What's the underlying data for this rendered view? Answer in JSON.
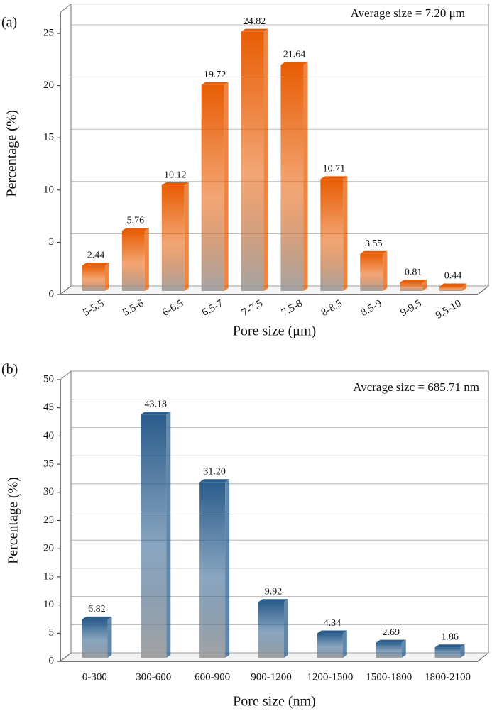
{
  "chart_data": [
    {
      "type": "bar",
      "panel_label": "(a)",
      "annotation": "Average size = 7.20 μm",
      "x_label": "Pore size (μm)",
      "y_label": "Percentage (%)",
      "categories": [
        "5-5.5",
        "5.5-6",
        "6-6.5",
        "6.5-7",
        "7-7.5",
        "7.5-8",
        "8-8.5",
        "8.5-9",
        "9-9.5",
        "9.5-10"
      ],
      "values": [
        2.44,
        5.76,
        10.12,
        19.72,
        24.82,
        21.64,
        10.71,
        3.55,
        0.81,
        0.44
      ],
      "value_labels": [
        "2.44",
        "5.76",
        "10.12",
        "19.72",
        "24.82",
        "21.64",
        "10.71",
        "3.55",
        "0.81",
        "0.44"
      ],
      "color": "#e85d04",
      "ylim": [
        0,
        27
      ],
      "yticks": [
        0,
        5,
        10,
        15,
        20,
        25
      ],
      "grid": true
    },
    {
      "type": "bar",
      "panel_label": "(b)",
      "annotation": "Avcrage sizc = 685.71 nm",
      "x_label": "Pore size (nm)",
      "y_label": "Percentage (%)",
      "categories": [
        "0-300",
        "300-600",
        "600-900",
        "900-1200",
        "1200-1500",
        "1500-1800",
        "1800-2100"
      ],
      "values": [
        6.82,
        43.18,
        31.2,
        9.92,
        4.34,
        2.69,
        1.86
      ],
      "value_labels": [
        "6.82",
        "43.18",
        "31.20",
        "9.92",
        "4.34",
        "2.69",
        "1.86"
      ],
      "color": "#2b5d8c",
      "ylim": [
        0,
        50
      ],
      "yticks": [
        0,
        5,
        10,
        15,
        20,
        25,
        30,
        35,
        40,
        45,
        50
      ],
      "grid": true
    }
  ]
}
